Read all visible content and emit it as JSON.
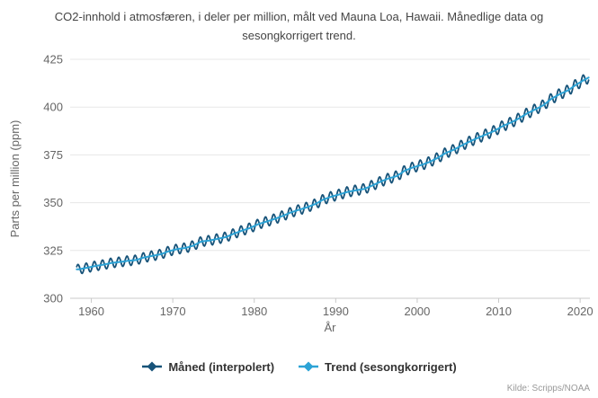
{
  "header": {
    "title": "CO2-innhold i atmosfæren, i deler per million, målt ved Mauna Loa, Hawaii. Månedlige data og sesongkorrigert trend."
  },
  "legend": {
    "items": [
      {
        "label": "Måned (interpolert)",
        "color": "#175379",
        "marker": "diamond-line"
      },
      {
        "label": "Trend (sesongkorrigert)",
        "color": "#2ca3d6",
        "marker": "diamond-line"
      }
    ]
  },
  "footer": {
    "source": "Kilde: Scripps/NOAA"
  },
  "chart_data": {
    "type": "line",
    "title": "CO2-innhold i atmosfæren, i deler per million, målt ved Mauna Loa, Hawaii. Månedlige data og sesongkorrigert trend.",
    "xlabel": "År",
    "ylabel": "Parts per million (ppm)",
    "xlim": [
      1957.4,
      2021.2
    ],
    "ylim": [
      300,
      425
    ],
    "xticks": [
      1960,
      1970,
      1980,
      1990,
      2000,
      2010,
      2020
    ],
    "yticks": [
      300,
      325,
      350,
      375,
      400,
      425
    ],
    "grid": true,
    "legend_position": "bottom",
    "x_start": 1958.21,
    "x_end": 2021.12,
    "series": [
      {
        "name": "Måned (interpolert)",
        "color": "#175379",
        "kind": "monthly",
        "description": "monthly values = trend + seasonal cycle, peak in May, trough in autumn",
        "seasonal_amplitude_ppm_start": 2.5,
        "seasonal_amplitude_ppm_end": 2.9
      },
      {
        "name": "Trend (sesongkorrigert)",
        "color": "#2ca3d6",
        "kind": "trend",
        "years": [
          1958,
          1959,
          1960,
          1961,
          1962,
          1963,
          1964,
          1965,
          1966,
          1967,
          1968,
          1969,
          1970,
          1971,
          1972,
          1973,
          1974,
          1975,
          1976,
          1977,
          1978,
          1979,
          1980,
          1981,
          1982,
          1983,
          1984,
          1985,
          1986,
          1987,
          1988,
          1989,
          1990,
          1991,
          1992,
          1993,
          1994,
          1995,
          1996,
          1997,
          1998,
          1999,
          2000,
          2001,
          2002,
          2003,
          2004,
          2005,
          2006,
          2007,
          2008,
          2009,
          2010,
          2011,
          2012,
          2013,
          2014,
          2015,
          2016,
          2017,
          2018,
          2019,
          2020,
          2021
        ],
        "values": [
          315.2,
          316.0,
          316.9,
          317.6,
          318.5,
          319.0,
          319.6,
          320.0,
          321.4,
          322.2,
          323.0,
          324.6,
          325.7,
          326.3,
          327.5,
          329.7,
          330.2,
          331.1,
          332.0,
          333.8,
          335.4,
          336.8,
          338.8,
          340.1,
          341.5,
          343.1,
          344.9,
          346.3,
          347.6,
          349.3,
          351.7,
          353.2,
          354.4,
          355.7,
          356.5,
          357.2,
          359.0,
          361.0,
          362.7,
          363.9,
          366.8,
          368.5,
          369.7,
          371.3,
          373.4,
          376.0,
          377.7,
          380.0,
          382.1,
          384.0,
          385.8,
          387.6,
          390.1,
          391.9,
          394.1,
          396.7,
          398.8,
          401.0,
          404.4,
          406.8,
          408.7,
          411.7,
          414.2,
          416.5
        ]
      }
    ],
    "source": "Kilde: Scripps/NOAA"
  }
}
